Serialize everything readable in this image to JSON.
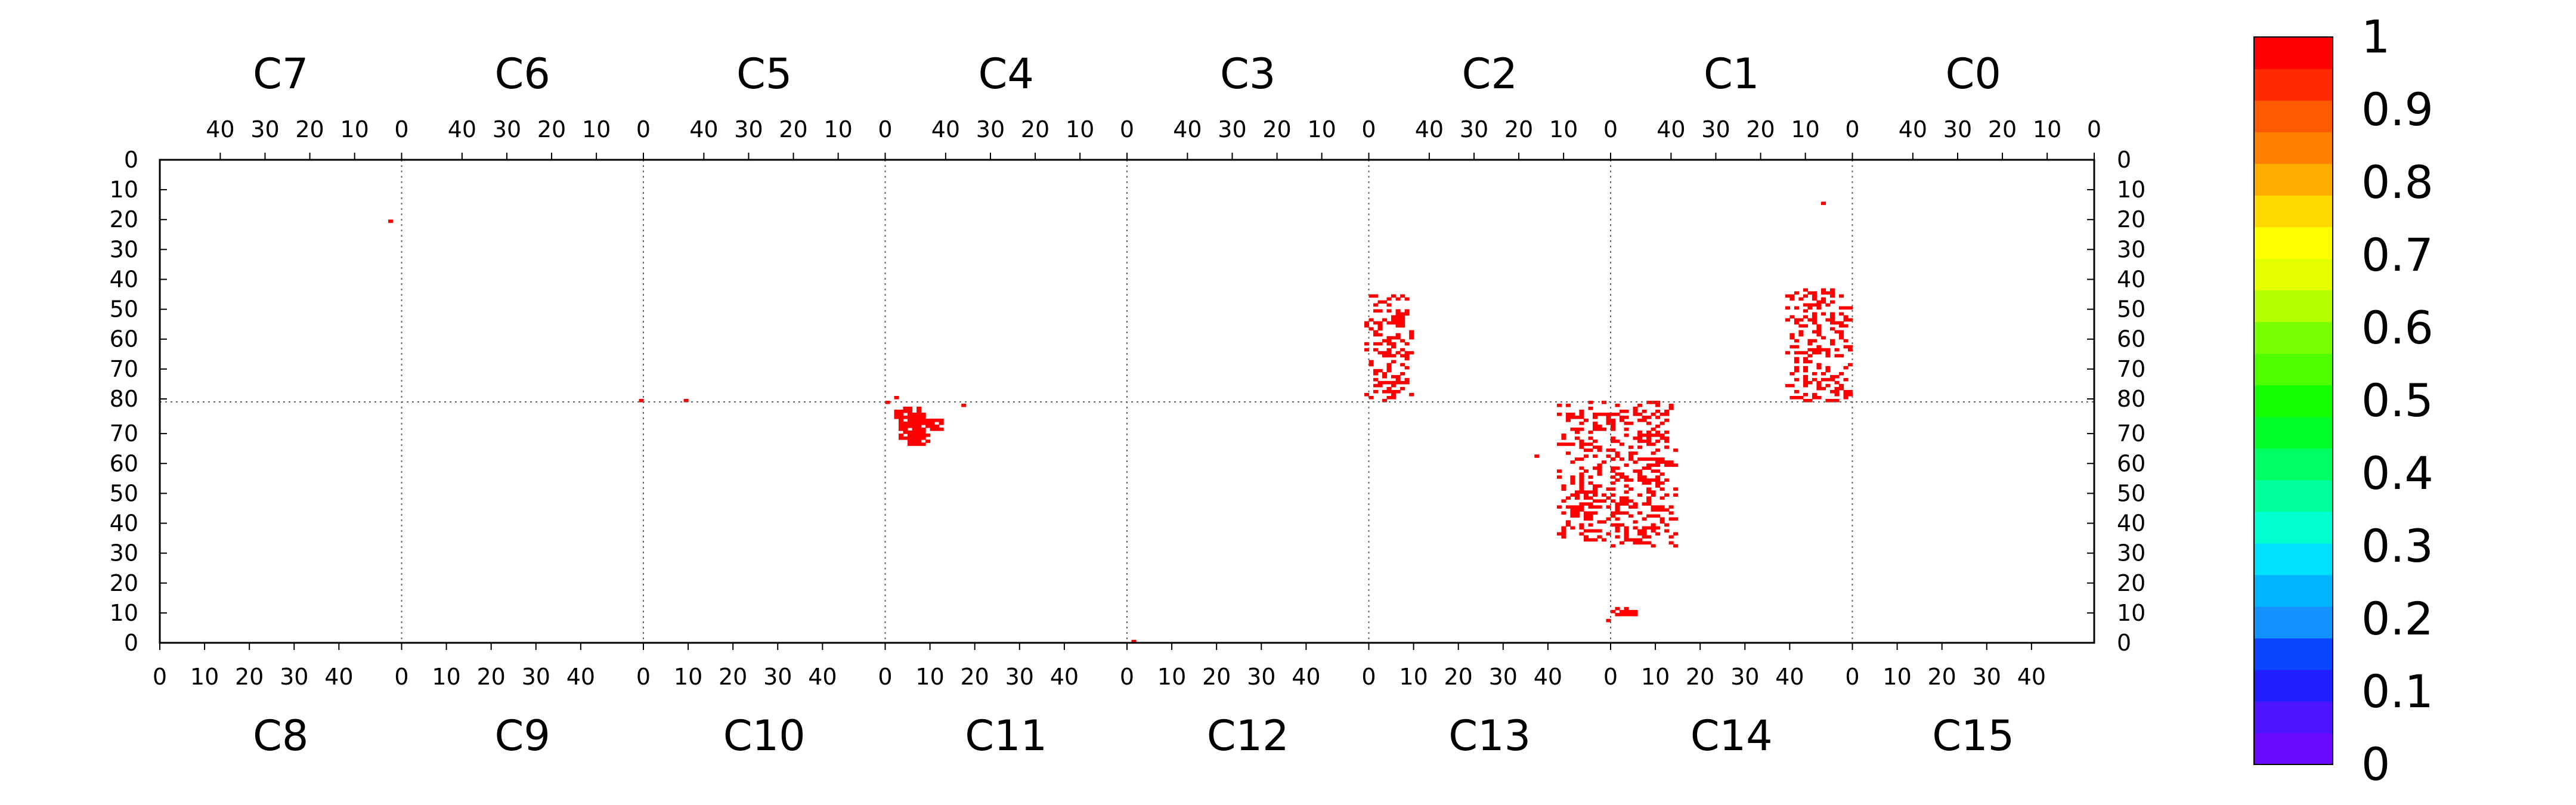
{
  "chart_data": {
    "type": "heatmap",
    "title": "",
    "colorscale": {
      "labels": [
        "0",
        "0.1",
        "0.2",
        "0.3",
        "0.4",
        "0.5",
        "0.6",
        "0.7",
        "0.8",
        "0.9",
        "1"
      ],
      "colors": [
        "#6a0aff",
        "#4d14ff",
        "#1f1fff",
        "#0a46ff",
        "#1492ff",
        "#00b4ff",
        "#00e0ff",
        "#00ffd0",
        "#00ff9a",
        "#00ff64",
        "#00ff28",
        "#14ff00",
        "#50ff00",
        "#7aff00",
        "#b4ff00",
        "#e6ff00",
        "#ffff00",
        "#ffd800",
        "#ffae00",
        "#ff8000",
        "#ff5a00",
        "#ff2a00",
        "#ff0000"
      ]
    },
    "pixel_color": "#ff0000",
    "top_chips": [
      {
        "label": "C7",
        "ticks": [
          "40",
          "30",
          "20",
          "10",
          "0"
        ]
      },
      {
        "label": "C6",
        "ticks": [
          "40",
          "30",
          "20",
          "10",
          "0"
        ]
      },
      {
        "label": "C5",
        "ticks": [
          "40",
          "30",
          "20",
          "10",
          "0"
        ]
      },
      {
        "label": "C4",
        "ticks": [
          "40",
          "30",
          "20",
          "10",
          "0"
        ]
      },
      {
        "label": "C3",
        "ticks": [
          "40",
          "30",
          "20",
          "10",
          "0"
        ]
      },
      {
        "label": "C2",
        "ticks": [
          "40",
          "30",
          "20",
          "10",
          "0"
        ]
      },
      {
        "label": "C1",
        "ticks": [
          "40",
          "30",
          "20",
          "10",
          "0"
        ]
      },
      {
        "label": "C0",
        "ticks": [
          "40",
          "30",
          "20",
          "10",
          "0"
        ]
      }
    ],
    "bottom_chips": [
      {
        "label": "C8",
        "ticks": [
          "0",
          "10",
          "20",
          "30",
          "40"
        ]
      },
      {
        "label": "C9",
        "ticks": [
          "0",
          "10",
          "20",
          "30",
          "40"
        ]
      },
      {
        "label": "C10",
        "ticks": [
          "0",
          "10",
          "20",
          "30",
          "40"
        ]
      },
      {
        "label": "C11",
        "ticks": [
          "0",
          "10",
          "20",
          "30",
          "40"
        ]
      },
      {
        "label": "C12",
        "ticks": [
          "0",
          "10",
          "20",
          "30",
          "40"
        ]
      },
      {
        "label": "C13",
        "ticks": [
          "0",
          "10",
          "20",
          "30",
          "40"
        ]
      },
      {
        "label": "C14",
        "ticks": [
          "0",
          "10",
          "20",
          "30",
          "40"
        ]
      },
      {
        "label": "C15",
        "ticks": [
          "0",
          "10",
          "20",
          "30",
          "40"
        ]
      }
    ],
    "y_ticks_upper": [
      "0",
      "10",
      "20",
      "30",
      "40",
      "50",
      "60",
      "70",
      "80"
    ],
    "y_ticks_lower": [
      "70",
      "60",
      "50",
      "40",
      "30",
      "20",
      "10",
      "0"
    ],
    "pixels_hot": [
      {
        "chip": "C7",
        "col": 2,
        "row": 20
      },
      {
        "chip": "C6",
        "col": 0,
        "row": 80
      },
      {
        "chip": "C5",
        "col": 44,
        "row": 80
      },
      {
        "chip": "C4",
        "col": 51,
        "row": 79
      },
      {
        "chip": "C11",
        "col": 0,
        "row": 80
      },
      {
        "chip": "C11",
        "col": 17,
        "row": 79
      },
      {
        "chip": "C12",
        "col": 1,
        "row": 0
      },
      {
        "chip": "C13",
        "col": 37,
        "row": 62
      },
      {
        "chip": "C1",
        "col": 6,
        "row": 14
      }
    ],
    "clusters": [
      {
        "chip": "C11",
        "dense": [
          {
            "col": [
              2,
              8
            ],
            "row": [
              75,
              78
            ]
          },
          {
            "col": [
              3,
              7
            ],
            "row": [
              68,
              74
            ]
          },
          {
            "col": [
              7,
              12
            ],
            "row": [
              71,
              74
            ]
          },
          {
            "col": [
              5,
              9
            ],
            "row": [
              66,
              70
            ]
          }
        ]
      },
      {
        "chip": "C13",
        "sparse": [
          {
            "col": [
              42,
              54
            ],
            "row": [
              34,
              80
            ]
          }
        ]
      },
      {
        "chip": "C14",
        "sparse": [
          {
            "col": [
              0,
              14
            ],
            "row": [
              32,
              80
            ]
          }
        ]
      },
      {
        "chip": "C2",
        "sparse": [
          {
            "col": [
              44,
              54
            ],
            "row": [
              45,
              80
            ]
          }
        ]
      },
      {
        "chip": "C1",
        "sparse": [
          {
            "col": [
              0,
              14
            ],
            "row": [
              43,
              80
            ]
          }
        ]
      },
      {
        "chip": "C14",
        "dense": [
          {
            "col": [
              0,
              5
            ],
            "row": [
              9,
              11
            ]
          }
        ]
      },
      {
        "chip": "C13",
        "sparse": [
          {
            "col": [
              51,
              54
            ],
            "row": [
              6,
              8
            ]
          }
        ]
      }
    ]
  }
}
